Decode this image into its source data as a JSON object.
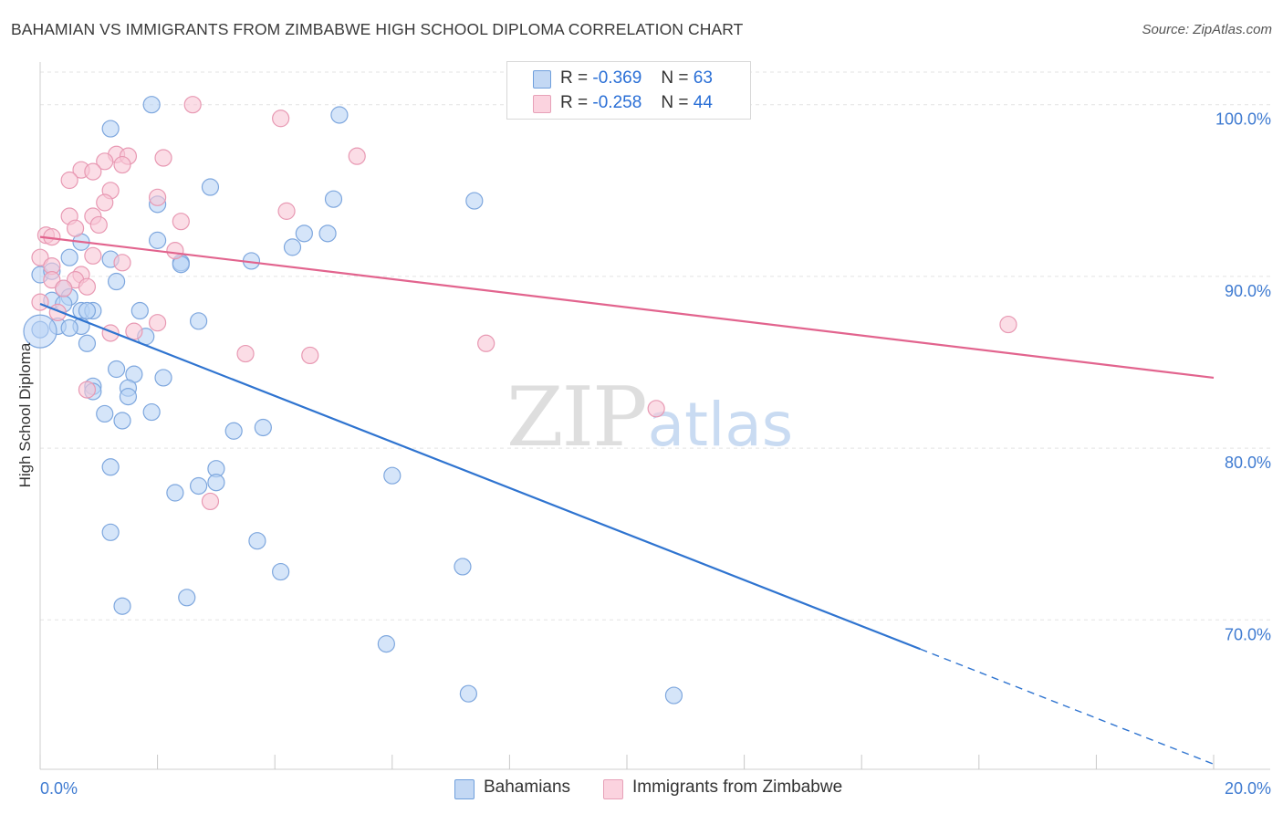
{
  "title": "BAHAMIAN VS IMMIGRANTS FROM ZIMBABWE HIGH SCHOOL DIPLOMA CORRELATION CHART",
  "source": "Source: ZipAtlas.com",
  "watermark": {
    "zip": "ZIP",
    "atlas": "atlas"
  },
  "colors": {
    "blue_fill": "#b9d3f5",
    "blue_stroke": "#7ea7de",
    "blue_line": "#2f74d0",
    "pink_fill": "#f8c6d6",
    "pink_stroke": "#e899b3",
    "pink_line": "#e2648e",
    "tick_label": "#3f7bd1",
    "grid": "#e3e3e3"
  },
  "legend": {
    "r_label": "R =",
    "n_label": "N =",
    "rows": [
      {
        "r": "-0.369",
        "n": "63"
      },
      {
        "r": "-0.258",
        "n": "44"
      }
    ]
  },
  "bottom_legend": [
    "Bahamians",
    "Immigrants from Zimbabwe"
  ],
  "chart_data": {
    "type": "scatter",
    "title": "BAHAMIAN VS IMMIGRANTS FROM ZIMBABWE HIGH SCHOOL DIPLOMA CORRELATION CHART",
    "xlabel": "",
    "ylabel": "High School Diploma",
    "xlim": [
      0,
      20
    ],
    "ylim": [
      61.3,
      102.8
    ],
    "x_tick_labels": [
      "0.0%",
      "20.0%"
    ],
    "y_ticks": [
      70,
      80,
      90,
      100
    ],
    "y_tick_labels": [
      "70.0%",
      "80.0%",
      "90.0%",
      "100.0%"
    ],
    "grid": true,
    "legend_position": "top-center",
    "series": [
      {
        "name": "Bahamians",
        "r": -0.369,
        "n": 63,
        "trend": {
          "x0": 0,
          "y0": 88.4,
          "x1": 15.0,
          "y1": 68.3,
          "dashed_to_x": 20,
          "dashed_to_y": 61.6
        },
        "points": [
          [
            1.9,
            100.0
          ],
          [
            5.1,
            99.4
          ],
          [
            1.2,
            98.6
          ],
          [
            2.9,
            95.2
          ],
          [
            5.0,
            94.5
          ],
          [
            7.4,
            94.4
          ],
          [
            2.0,
            94.2
          ],
          [
            4.5,
            92.5
          ],
          [
            4.9,
            92.5
          ],
          [
            2.0,
            92.1
          ],
          [
            4.3,
            91.7
          ],
          [
            0.7,
            92.0
          ],
          [
            0.5,
            91.1
          ],
          [
            1.2,
            91.0
          ],
          [
            3.6,
            90.9
          ],
          [
            2.4,
            90.8
          ],
          [
            2.4,
            90.7
          ],
          [
            0.0,
            90.1
          ],
          [
            0.2,
            90.3
          ],
          [
            1.3,
            89.7
          ],
          [
            0.4,
            89.3
          ],
          [
            0.2,
            88.6
          ],
          [
            0.5,
            88.8
          ],
          [
            0.4,
            88.4
          ],
          [
            0.7,
            88.0
          ],
          [
            0.9,
            88.0
          ],
          [
            1.7,
            88.0
          ],
          [
            0.8,
            88.0
          ],
          [
            0.7,
            87.1
          ],
          [
            0.3,
            87.1
          ],
          [
            0.5,
            87.0
          ],
          [
            2.7,
            87.4
          ],
          [
            0.0,
            86.9
          ],
          [
            1.8,
            86.5
          ],
          [
            0.8,
            86.1
          ],
          [
            1.3,
            84.6
          ],
          [
            1.6,
            84.3
          ],
          [
            2.1,
            84.1
          ],
          [
            0.9,
            83.6
          ],
          [
            0.9,
            83.3
          ],
          [
            1.5,
            83.5
          ],
          [
            1.5,
            83.0
          ],
          [
            1.9,
            82.1
          ],
          [
            1.1,
            82.0
          ],
          [
            1.4,
            81.6
          ],
          [
            3.8,
            81.2
          ],
          [
            3.3,
            81.0
          ],
          [
            1.2,
            78.9
          ],
          [
            3.0,
            78.8
          ],
          [
            6.0,
            78.4
          ],
          [
            3.0,
            78.0
          ],
          [
            2.7,
            77.8
          ],
          [
            2.3,
            77.4
          ],
          [
            1.2,
            75.1
          ],
          [
            3.7,
            74.6
          ],
          [
            7.2,
            73.1
          ],
          [
            4.1,
            72.8
          ],
          [
            2.5,
            71.3
          ],
          [
            1.4,
            70.8
          ],
          [
            5.9,
            68.6
          ],
          [
            7.3,
            65.7
          ],
          [
            10.8,
            65.6
          ],
          [
            0.0,
            86.8
          ]
        ]
      },
      {
        "name": "Immigrants from Zimbabwe",
        "r": -0.258,
        "n": 44,
        "trend": {
          "x0": 0,
          "y0": 92.3,
          "x1": 20,
          "y1": 84.1
        },
        "points": [
          [
            2.6,
            100.0
          ],
          [
            4.1,
            99.2
          ],
          [
            5.4,
            97.0
          ],
          [
            1.3,
            97.1
          ],
          [
            1.5,
            97.0
          ],
          [
            2.1,
            96.9
          ],
          [
            1.1,
            96.7
          ],
          [
            1.4,
            96.5
          ],
          [
            0.7,
            96.2
          ],
          [
            0.9,
            96.1
          ],
          [
            0.5,
            95.6
          ],
          [
            1.2,
            95.0
          ],
          [
            2.0,
            94.6
          ],
          [
            1.1,
            94.3
          ],
          [
            4.2,
            93.8
          ],
          [
            0.5,
            93.5
          ],
          [
            0.9,
            93.5
          ],
          [
            2.4,
            93.2
          ],
          [
            1.0,
            93.0
          ],
          [
            0.6,
            92.8
          ],
          [
            0.1,
            92.4
          ],
          [
            0.2,
            92.3
          ],
          [
            2.3,
            91.5
          ],
          [
            0.9,
            91.2
          ],
          [
            0.0,
            91.1
          ],
          [
            1.4,
            90.8
          ],
          [
            0.2,
            90.6
          ],
          [
            0.7,
            90.1
          ],
          [
            0.2,
            89.8
          ],
          [
            0.6,
            89.8
          ],
          [
            0.8,
            89.4
          ],
          [
            0.4,
            89.3
          ],
          [
            0.0,
            88.5
          ],
          [
            0.3,
            87.9
          ],
          [
            2.0,
            87.3
          ],
          [
            16.5,
            87.2
          ],
          [
            1.6,
            86.8
          ],
          [
            1.2,
            86.7
          ],
          [
            7.6,
            86.1
          ],
          [
            3.5,
            85.5
          ],
          [
            4.6,
            85.4
          ],
          [
            0.8,
            83.4
          ],
          [
            10.5,
            82.3
          ],
          [
            2.9,
            76.9
          ]
        ]
      }
    ]
  }
}
